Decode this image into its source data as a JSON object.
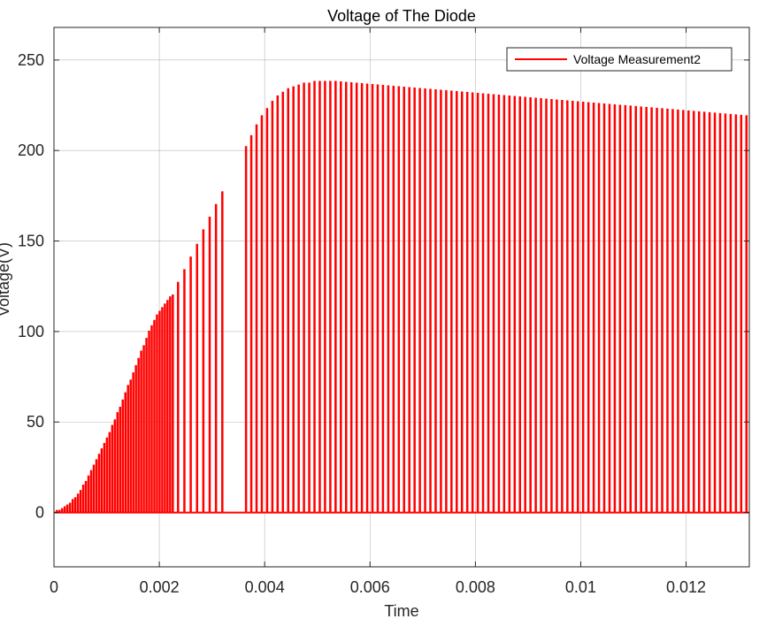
{
  "chart_data": {
    "type": "line",
    "title": "Voltage of The Diode",
    "xlabel": "Time",
    "ylabel": "Voltage(V)",
    "xlim": [
      0,
      0.0132
    ],
    "ylim": [
      -30,
      268
    ],
    "xticks": [
      0,
      0.002,
      0.004,
      0.006,
      0.008,
      0.01,
      0.012
    ],
    "xtick_labels": [
      "0",
      "0.002",
      "0.004",
      "0.006",
      "0.008",
      "0.01",
      "0.012"
    ],
    "yticks": [
      0,
      50,
      100,
      150,
      200,
      250
    ],
    "ytick_labels": [
      "0",
      "50",
      "100",
      "150",
      "200",
      "250"
    ],
    "grid": true,
    "legend_position": "top-right",
    "series": [
      {
        "name": "Voltage Measurement2",
        "color": "#ff0000",
        "pulses_phase1": {
          "x": [
            5e-05,
            0.0001,
            0.00015,
            0.0002,
            0.00025,
            0.0003,
            0.00035,
            0.0004,
            0.00045,
            0.0005,
            0.00055,
            0.0006,
            0.00065,
            0.0007,
            0.00075,
            0.0008,
            0.00085,
            0.0009,
            0.00095,
            0.001,
            0.00105,
            0.0011,
            0.00115,
            0.0012,
            0.00125,
            0.0013,
            0.00135,
            0.0014,
            0.00145,
            0.0015,
            0.00155,
            0.0016,
            0.00165,
            0.0017,
            0.00175,
            0.0018,
            0.00185,
            0.0019,
            0.00195,
            0.002,
            0.00205,
            0.0021,
            0.00215,
            0.0022,
            0.00225
          ],
          "y": [
            1,
            1,
            2,
            3,
            4,
            5,
            7,
            8,
            10,
            12,
            15,
            17,
            20,
            23,
            26,
            29,
            32,
            35,
            38,
            41,
            44,
            48,
            51,
            55,
            58,
            62,
            66,
            70,
            73,
            77,
            81,
            85,
            89,
            92,
            96,
            100,
            103,
            106,
            109,
            111,
            113,
            115,
            117,
            119,
            120
          ]
        },
        "pulses_phase2": {
          "x": [
            0.00235,
            0.00247,
            0.00259,
            0.00271,
            0.00283,
            0.00295,
            0.00307,
            0.00319
          ],
          "y": [
            127,
            134,
            141,
            148,
            156,
            163,
            170,
            177
          ]
        },
        "pulses_phase3": {
          "x_start": 0.00364,
          "spacing": 0.0001,
          "count": 96,
          "rise": [
            202,
            208,
            214,
            219,
            223,
            227,
            230,
            232,
            234,
            235,
            236,
            237,
            237,
            238,
            238,
            238,
            238
          ],
          "peak": 238,
          "end_value": 219
        }
      }
    ]
  }
}
